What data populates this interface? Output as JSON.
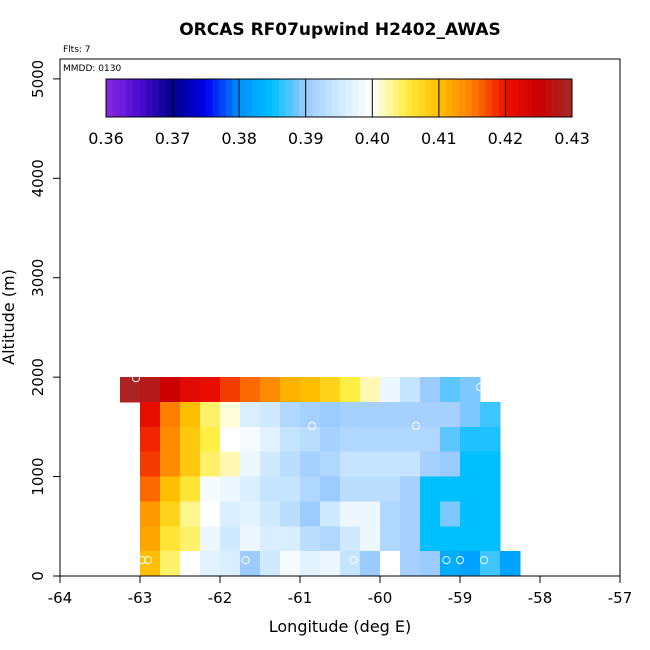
{
  "chart_data": {
    "type": "heatmap",
    "title": "ORCAS RF07upwind H2402_AWAS",
    "flights_note": "Flts: 7",
    "date_note": "MMDD: 0130",
    "xlabel": "Longitude (deg E)",
    "ylabel": "Altitude (m)",
    "xlim": [
      -64,
      -57
    ],
    "ylim": [
      0,
      5200
    ],
    "xticks": [
      -64,
      -63,
      -62,
      -61,
      -60,
      -59,
      -58,
      -57
    ],
    "xtick_labels": [
      "-64",
      "-63",
      "-62",
      "-61",
      "-60",
      "-59",
      "-58",
      "-57"
    ],
    "yticks": [
      0,
      1000,
      2000,
      3000,
      4000,
      5000
    ],
    "ytick_labels": [
      "0",
      "1000",
      "2000",
      "3000",
      "4000",
      "5000"
    ],
    "colorbar": {
      "min": 0.36,
      "max": 0.43,
      "ticks": [
        0.36,
        0.37,
        0.38,
        0.39,
        0.4,
        0.41,
        0.42,
        0.43
      ],
      "tick_labels": [
        "0.36",
        "0.37",
        "0.38",
        "0.39",
        "0.40",
        "0.41",
        "0.42",
        "0.43"
      ],
      "stops": [
        {
          "v": 0.36,
          "c": "#8a2be2"
        },
        {
          "v": 0.365,
          "c": "#4b0bd0"
        },
        {
          "v": 0.37,
          "c": "#00008b"
        },
        {
          "v": 0.375,
          "c": "#0000ee"
        },
        {
          "v": 0.38,
          "c": "#0090ff"
        },
        {
          "v": 0.385,
          "c": "#00bfff"
        },
        {
          "v": 0.39,
          "c": "#9ccbff"
        },
        {
          "v": 0.395,
          "c": "#cfeaff"
        },
        {
          "v": 0.4,
          "c": "#ffffff"
        },
        {
          "v": 0.405,
          "c": "#ffee44"
        },
        {
          "v": 0.41,
          "c": "#ffbf00"
        },
        {
          "v": 0.415,
          "c": "#ff7f00"
        },
        {
          "v": 0.42,
          "c": "#ee1000"
        },
        {
          "v": 0.425,
          "c": "#cc0000"
        },
        {
          "v": 0.43,
          "c": "#a52a2a"
        }
      ]
    },
    "cell_size": {
      "dlon": 0.25,
      "dalt": 250
    },
    "rows": [
      {
        "alt": [
          1750,
          2000
        ],
        "lon_start": -63.25,
        "values": [
          0.429,
          0.428,
          0.425,
          0.422,
          0.421,
          0.418,
          0.416,
          0.414,
          0.411,
          0.41,
          0.408,
          0.405,
          0.402,
          0.398,
          0.394,
          0.39,
          0.388,
          0.389
        ]
      },
      {
        "alt": [
          1500,
          1750
        ],
        "lon_start": -63.0,
        "values": [
          0.421,
          0.415,
          0.41,
          0.404,
          0.401,
          0.396,
          0.395,
          0.392,
          0.391,
          0.39,
          0.391,
          0.391,
          0.391,
          0.391,
          0.391,
          0.391,
          0.389,
          0.387
        ]
      },
      {
        "alt": [
          1250,
          1500
        ],
        "lon_start": -63.0,
        "values": [
          0.419,
          0.414,
          0.409,
          0.405,
          0.4,
          0.399,
          0.397,
          0.394,
          0.393,
          0.391,
          0.392,
          0.392,
          0.392,
          0.392,
          0.392,
          0.388,
          0.386,
          0.386
        ]
      },
      {
        "alt": [
          1000,
          1250
        ],
        "lon_start": -63.0,
        "values": [
          0.418,
          0.414,
          0.409,
          0.404,
          0.402,
          0.398,
          0.395,
          0.393,
          0.391,
          0.392,
          0.394,
          0.394,
          0.394,
          0.394,
          0.391,
          0.39,
          0.385,
          0.385
        ]
      },
      {
        "alt": [
          750,
          1000
        ],
        "lon_start": -63.0,
        "values": [
          0.416,
          0.41,
          0.406,
          0.399,
          0.398,
          0.396,
          0.394,
          0.394,
          0.392,
          0.39,
          0.393,
          0.393,
          0.393,
          0.391,
          0.385,
          0.385,
          0.385,
          0.385
        ]
      },
      {
        "alt": [
          500,
          750
        ],
        "lon_start": -63.0,
        "values": [
          0.413,
          0.408,
          0.403,
          0.4,
          0.396,
          0.397,
          0.395,
          0.393,
          0.39,
          0.395,
          0.398,
          0.398,
          0.392,
          0.391,
          0.385,
          0.389,
          0.385,
          0.385
        ]
      },
      {
        "alt": [
          250,
          500
        ],
        "lon_start": -63.0,
        "values": [
          0.412,
          0.406,
          0.404,
          0.398,
          0.395,
          0.398,
          0.396,
          0.396,
          0.393,
          0.392,
          0.395,
          0.398,
          0.392,
          0.391,
          0.385,
          0.385,
          0.385,
          0.385
        ]
      },
      {
        "alt": [
          0,
          250
        ],
        "lon_start": -63.0,
        "values": [
          0.41,
          0.404,
          0.4,
          0.397,
          0.396,
          0.39,
          0.395,
          0.399,
          0.397,
          0.398,
          0.394,
          0.39,
          0.4,
          0.391,
          0.39,
          0.383,
          0.382,
          0.387,
          0.382
        ]
      }
    ],
    "sample_points": [
      {
        "lon": -63.05,
        "alt": 1990
      },
      {
        "lon": -58.75,
        "alt": 1900
      },
      {
        "lon": -60.85,
        "alt": 1510
      },
      {
        "lon": -59.55,
        "alt": 1510
      },
      {
        "lon": -62.98,
        "alt": 160
      },
      {
        "lon": -62.9,
        "alt": 160
      },
      {
        "lon": -61.68,
        "alt": 160
      },
      {
        "lon": -60.33,
        "alt": 160
      },
      {
        "lon": -59.17,
        "alt": 160
      },
      {
        "lon": -59.0,
        "alt": 160
      },
      {
        "lon": -58.7,
        "alt": 160
      }
    ]
  }
}
